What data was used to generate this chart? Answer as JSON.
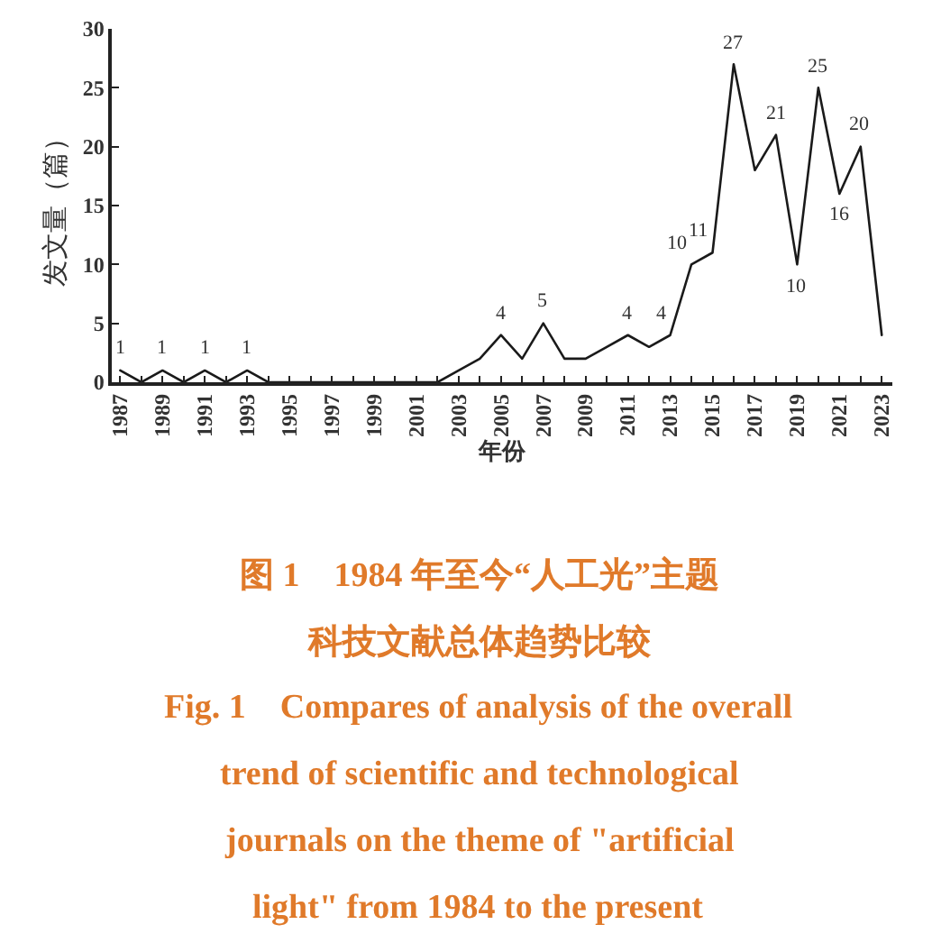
{
  "chart_data": {
    "type": "line",
    "xlabel": "年份",
    "ylabel": "发文量（篇）",
    "x": [
      1987,
      1988,
      1989,
      1990,
      1991,
      1992,
      1993,
      1994,
      1995,
      1996,
      1997,
      1998,
      1999,
      2000,
      2001,
      2002,
      2003,
      2004,
      2005,
      2006,
      2007,
      2008,
      2009,
      2010,
      2011,
      2012,
      2013,
      2014,
      2015,
      2016,
      2017,
      2018,
      2019,
      2020,
      2021,
      2022,
      2023
    ],
    "series": [
      {
        "color": "#1a1a1a",
        "values": [
          1,
          0,
          1,
          0,
          1,
          0,
          1,
          0,
          0,
          0,
          0,
          0,
          0,
          0,
          0,
          0,
          1,
          2,
          4,
          2,
          5,
          2,
          2,
          3,
          4,
          3,
          4,
          10,
          11,
          27,
          18,
          21,
          10,
          25,
          16,
          20,
          4
        ],
        "value_labels": [
          "1",
          null,
          "1",
          null,
          "1",
          null,
          "1",
          null,
          null,
          null,
          null,
          null,
          null,
          null,
          null,
          null,
          null,
          null,
          "4",
          null,
          "5",
          null,
          null,
          null,
          "4",
          null,
          "4",
          "10",
          "11",
          "27",
          null,
          "21",
          "10",
          "25",
          "16",
          "20",
          null
        ]
      }
    ],
    "xlim": [
      1986.6,
      2023.5
    ],
    "xticks": [
      1987,
      {
        "value": 1988,
        "label": null
      },
      1989,
      {
        "value": 1990,
        "label": null
      },
      1991,
      {
        "value": 1992,
        "label": null
      },
      1993,
      {
        "value": 1994,
        "label": null
      },
      1995,
      {
        "value": 1996,
        "label": null
      },
      1997,
      {
        "value": 1998,
        "label": null
      },
      1999,
      {
        "value": 2000,
        "label": null
      },
      2001,
      {
        "value": 2002,
        "label": null
      },
      2003,
      {
        "value": 2004,
        "label": null
      },
      2005,
      {
        "value": 2006,
        "label": null
      },
      2007,
      {
        "value": 2008,
        "label": null
      },
      2009,
      {
        "value": 2010,
        "label": null
      },
      2011,
      {
        "value": 2012,
        "label": null
      },
      2013,
      {
        "value": 2014,
        "label": null
      },
      2015,
      {
        "value": 2016,
        "label": null
      },
      2017,
      {
        "value": 2018,
        "label": null
      },
      2019,
      {
        "value": 2020,
        "label": null
      },
      2021,
      {
        "value": 2022,
        "label": null
      },
      2023
    ],
    "ylim": [
      0,
      30
    ],
    "yticks": [
      0,
      5,
      10,
      15,
      20,
      25,
      30
    ],
    "marker": "none",
    "line_style": "solid",
    "annotations": [
      "图 1　1984 年至今“人工光”主题",
      "科技文献总体趋势比较",
      "Fig. 1　Compares of analysis of the overall",
      "trend of scientific and technological",
      "journals on the theme of \"artificial",
      "light\" from 1984 to the present"
    ]
  }
}
